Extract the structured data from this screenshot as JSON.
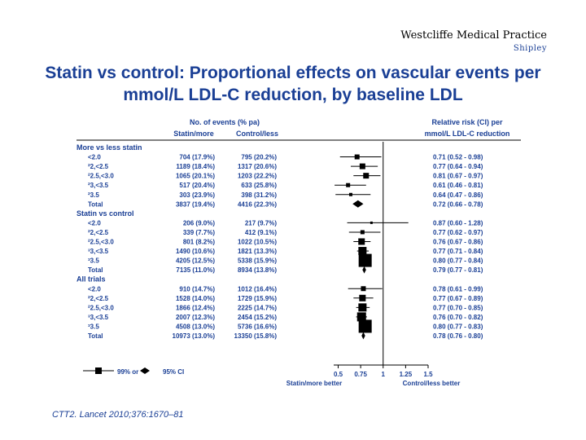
{
  "header": {
    "brand": "Westcliffe Medical Practice",
    "brand_sub": "Shipley",
    "title": "Statin vs control: Proportional effects on vascular events per mmol/L LDL-C reduction, by baseline LDL",
    "citation": "CTT2. Lancet 2010;376:1670–81"
  },
  "colors": {
    "accent": "#1a3f95",
    "marker": "#000000"
  },
  "chart_data": {
    "type": "forest",
    "columns": {
      "events_header": "No. of events (% pa)",
      "statin_header": "Statin/more",
      "control_header": "Control/less",
      "rr_header_1": "Relative risk (CI) per",
      "rr_header_2": "mmol/L LDL-C reduction"
    },
    "axis": {
      "ticks": [
        0.5,
        0.75,
        1,
        1.25,
        1.5
      ],
      "tick_labels": [
        "0.5",
        "0.75",
        "1",
        "1.25",
        "1.5"
      ],
      "label_left": "Statin/more better",
      "label_right": "Control/less better",
      "xlim": [
        0.45,
        1.5
      ]
    },
    "legend": {
      "ci99": "99% or",
      "ci95": "95% CI"
    },
    "groups": [
      {
        "name": "More vs less statin",
        "rows": [
          {
            "label": "<2.0",
            "statin": "704 (17.9%)",
            "control": "795 (20.2%)",
            "rr_text": "0.71 (0.52 - 0.98)",
            "rr": 0.71,
            "lo": 0.52,
            "hi": 0.98,
            "w": 6
          },
          {
            "label": "²2,<2.5",
            "statin": "1189 (18.4%)",
            "control": "1317 (20.6%)",
            "rr_text": "0.77 (0.64 - 0.94)",
            "rr": 0.77,
            "lo": 0.64,
            "hi": 0.94,
            "w": 7
          },
          {
            "label": "²2.5,<3.0",
            "statin": "1065 (20.1%)",
            "control": "1203 (22.2%)",
            "rr_text": "0.81 (0.67 - 0.97)",
            "rr": 0.81,
            "lo": 0.67,
            "hi": 0.97,
            "w": 7
          },
          {
            "label": "²3,<3.5",
            "statin": "517 (20.4%)",
            "control": "633 (25.8%)",
            "rr_text": "0.61 (0.46 - 0.81)",
            "rr": 0.61,
            "lo": 0.46,
            "hi": 0.81,
            "w": 5
          },
          {
            "label": "²3.5",
            "statin": "303 (23.9%)",
            "control": "398 (31.2%)",
            "rr_text": "0.64 (0.47 - 0.86)",
            "rr": 0.64,
            "lo": 0.47,
            "hi": 0.86,
            "w": 4
          }
        ],
        "total": {
          "label": "Total",
          "statin": "3837 (19.4%)",
          "control": "4416 (22.3%)",
          "rr_text": "0.72 (0.66 - 0.78)",
          "rr": 0.72,
          "lo": 0.66,
          "hi": 0.78
        }
      },
      {
        "name": "Statin vs control",
        "rows": [
          {
            "label": "<2.0",
            "statin": "206 (9.0%)",
            "control": "217 (9.7%)",
            "rr_text": "0.87 (0.60 - 1.28)",
            "rr": 0.87,
            "lo": 0.6,
            "hi": 1.28,
            "w": 3
          },
          {
            "label": "²2,<2.5",
            "statin": "339 (7.7%)",
            "control": "412 (9.1%)",
            "rr_text": "0.77 (0.62 - 0.97)",
            "rr": 0.77,
            "lo": 0.62,
            "hi": 0.97,
            "w": 5
          },
          {
            "label": "²2.5,<3.0",
            "statin": "801 (8.2%)",
            "control": "1022 (10.5%)",
            "rr_text": "0.76 (0.67 - 0.86)",
            "rr": 0.76,
            "lo": 0.67,
            "hi": 0.86,
            "w": 8
          },
          {
            "label": "³3,<3.5",
            "statin": "1490 (10.6%)",
            "control": "1821 (13.3%)",
            "rr_text": "0.77 (0.71 - 0.84)",
            "rr": 0.77,
            "lo": 0.71,
            "hi": 0.84,
            "w": 10
          },
          {
            "label": "³3.5",
            "statin": "4205 (12.5%)",
            "control": "5338 (15.9%)",
            "rr_text": "0.80 (0.77 - 0.84)",
            "rr": 0.8,
            "lo": 0.77,
            "hi": 0.84,
            "w": 16
          }
        ],
        "total": {
          "label": "Total",
          "statin": "7135 (11.0%)",
          "control": "8934 (13.8%)",
          "rr_text": "0.79 (0.77 - 0.81)",
          "rr": 0.79,
          "lo": 0.77,
          "hi": 0.81
        }
      },
      {
        "name": "All trials",
        "rows": [
          {
            "label": "<2.0",
            "statin": "910 (14.7%)",
            "control": "1012 (16.4%)",
            "rr_text": "0.78 (0.61 - 0.99)",
            "rr": 0.78,
            "lo": 0.61,
            "hi": 0.99,
            "w": 6
          },
          {
            "label": "²2,<2.5",
            "statin": "1528 (14.0%)",
            "control": "1729 (15.9%)",
            "rr_text": "0.77 (0.67 - 0.89)",
            "rr": 0.77,
            "lo": 0.67,
            "hi": 0.89,
            "w": 8
          },
          {
            "label": "²2.5,<3.0",
            "statin": "1866 (12.4%)",
            "control": "2225 (14.7%)",
            "rr_text": "0.77 (0.70 - 0.85)",
            "rr": 0.77,
            "lo": 0.7,
            "hi": 0.85,
            "w": 10
          },
          {
            "label": "³3,<3.5",
            "statin": "2007 (12.3%)",
            "control": "2454 (15.2%)",
            "rr_text": "0.76 (0.70 - 0.82)",
            "rr": 0.76,
            "lo": 0.7,
            "hi": 0.82,
            "w": 11
          },
          {
            "label": "³3.5",
            "statin": "4508 (13.0%)",
            "control": "5736 (16.6%)",
            "rr_text": "0.80 (0.77 - 0.83)",
            "rr": 0.8,
            "lo": 0.77,
            "hi": 0.83,
            "w": 16
          }
        ],
        "total": {
          "label": "Total",
          "statin": "10973 (13.0%)",
          "control": "13350 (15.8%)",
          "rr_text": "0.78 (0.76 - 0.80)",
          "rr": 0.78,
          "lo": 0.76,
          "hi": 0.8
        }
      }
    ]
  }
}
